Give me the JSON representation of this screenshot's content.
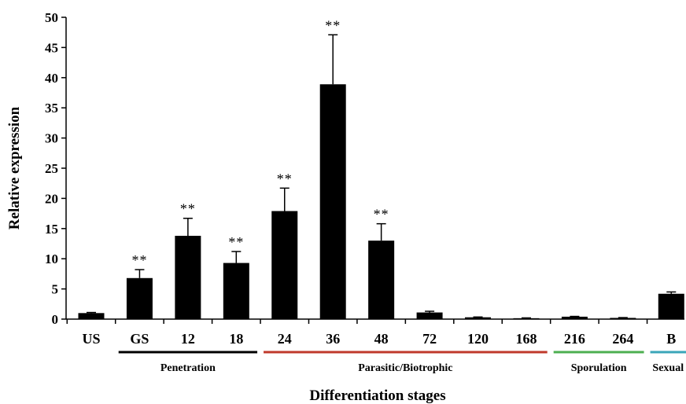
{
  "chart_data": {
    "type": "bar",
    "xlabel": "Differentiation stages",
    "ylabel": "Relative expression",
    "ylim": [
      0,
      50
    ],
    "yticks": [
      0,
      5,
      10,
      15,
      20,
      25,
      30,
      35,
      40,
      45,
      50
    ],
    "categories": [
      "US",
      "GS",
      "12",
      "18",
      "24",
      "36",
      "48",
      "72",
      "120",
      "168",
      "216",
      "264",
      "B"
    ],
    "values": [
      1.0,
      6.8,
      13.8,
      9.3,
      17.9,
      38.9,
      13.0,
      1.1,
      0.3,
      0.15,
      0.4,
      0.2,
      4.2
    ],
    "errors": [
      0.1,
      1.4,
      2.9,
      1.9,
      3.8,
      8.2,
      2.8,
      0.2,
      0.05,
      0.05,
      0.05,
      0.05,
      0.3
    ],
    "annotations": [
      "",
      "**",
      "**",
      "**",
      "**",
      "**",
      "**",
      "",
      "",
      "",
      "",
      "",
      ""
    ],
    "bar_color": "#000000",
    "grid": false,
    "groups": [
      {
        "label": "Penetration",
        "start": 1,
        "end": 3,
        "color": "#000000"
      },
      {
        "label": "Parasitic/Biotrophic",
        "start": 4,
        "end": 9,
        "color": "#c0392b"
      },
      {
        "label": "Sporulation",
        "start": 10,
        "end": 11,
        "color": "#4caf50"
      },
      {
        "label": "Sexual",
        "start": 12,
        "end": 12,
        "color": "#3aa6b9"
      }
    ]
  }
}
